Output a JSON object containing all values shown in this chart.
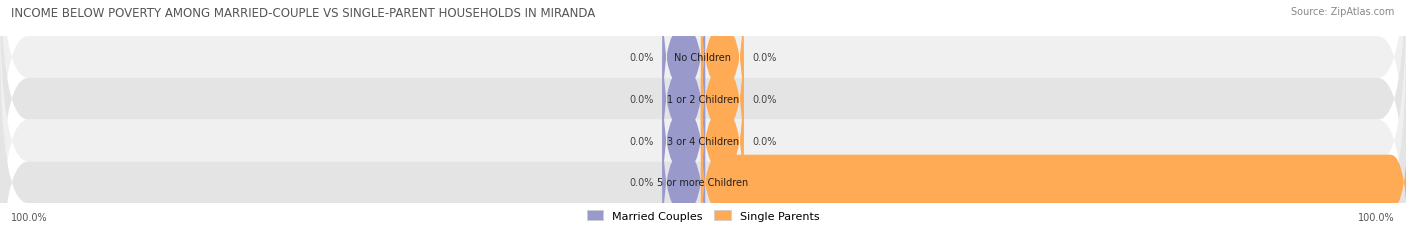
{
  "title": "INCOME BELOW POVERTY AMONG MARRIED-COUPLE VS SINGLE-PARENT HOUSEHOLDS IN MIRANDA",
  "source": "Source: ZipAtlas.com",
  "categories": [
    "No Children",
    "1 or 2 Children",
    "3 or 4 Children",
    "5 or more Children"
  ],
  "married_couples": [
    0.0,
    0.0,
    0.0,
    0.0
  ],
  "single_parents": [
    0.0,
    0.0,
    0.0,
    100.0
  ],
  "married_color": "#9999cc",
  "single_color": "#ffaa55",
  "row_bg_light": "#f0f0f0",
  "row_bg_dark": "#e4e4e4",
  "title_fontsize": 8.5,
  "source_fontsize": 7,
  "label_fontsize": 7,
  "category_fontsize": 7,
  "legend_fontsize": 8,
  "figsize": [
    14.06,
    2.32
  ],
  "dpi": 100,
  "left_label": "100.0%",
  "right_label": "100.0%"
}
